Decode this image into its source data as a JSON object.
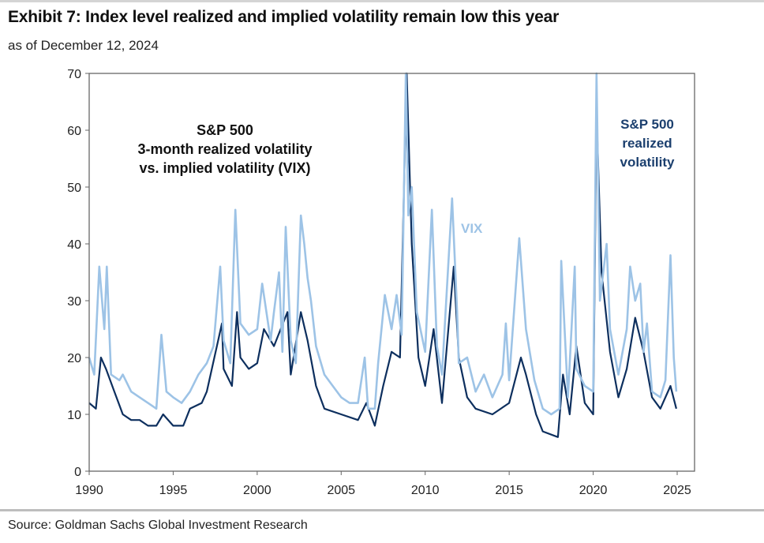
{
  "header": {
    "title": "Exhibit 7: Index level realized and implied volatility remain low this year",
    "subtitle": "as of December 12, 2024"
  },
  "footer": {
    "source": "Source: Goldman Sachs Global Investment Research"
  },
  "chart_data": {
    "type": "line",
    "title": "S&P 500 3-month realized volatility vs. implied volatility (VIX)",
    "annotations": {
      "main": [
        "S&P 500",
        "3-month realized volatility",
        "vs. implied volatility (VIX)"
      ],
      "vix": "VIX",
      "realized": [
        "S&P 500",
        "realized",
        "volatility"
      ]
    },
    "xlabel": "",
    "ylabel": "",
    "xlim": [
      1990,
      2025
    ],
    "ylim": [
      0,
      70
    ],
    "xticks": [
      1990,
      1995,
      2000,
      2005,
      2010,
      2015,
      2020,
      2025
    ],
    "yticks": [
      0,
      10,
      20,
      30,
      40,
      50,
      60,
      70
    ],
    "grid": false,
    "colors": {
      "vix": "#9dc3e6",
      "realized": "#0d2f5e"
    },
    "series": [
      {
        "name": "VIX",
        "points": [
          [
            1990,
            20
          ],
          [
            1990.3,
            17
          ],
          [
            1990.6,
            36
          ],
          [
            1990.9,
            25
          ],
          [
            1991.05,
            36
          ],
          [
            1991.3,
            17
          ],
          [
            1991.8,
            16
          ],
          [
            1992,
            17
          ],
          [
            1992.5,
            14
          ],
          [
            1993,
            13
          ],
          [
            1993.5,
            12
          ],
          [
            1994,
            11
          ],
          [
            1994.3,
            24
          ],
          [
            1994.6,
            14
          ],
          [
            1995,
            13
          ],
          [
            1995.5,
            12
          ],
          [
            1996,
            14
          ],
          [
            1996.5,
            17
          ],
          [
            1997,
            19
          ],
          [
            1997.4,
            22
          ],
          [
            1997.8,
            36
          ],
          [
            1998,
            23
          ],
          [
            1998.4,
            19
          ],
          [
            1998.7,
            46
          ],
          [
            1999,
            26
          ],
          [
            1999.5,
            24
          ],
          [
            2000,
            25
          ],
          [
            2000.3,
            33
          ],
          [
            2000.8,
            23
          ],
          [
            2001,
            28
          ],
          [
            2001.3,
            35
          ],
          [
            2001.5,
            21
          ],
          [
            2001.7,
            43
          ],
          [
            2002,
            23
          ],
          [
            2002.3,
            19
          ],
          [
            2002.6,
            45
          ],
          [
            2002.8,
            40
          ],
          [
            2003,
            34
          ],
          [
            2003.2,
            30
          ],
          [
            2003.5,
            22
          ],
          [
            2004,
            17
          ],
          [
            2004.5,
            15
          ],
          [
            2005,
            13
          ],
          [
            2005.5,
            12
          ],
          [
            2006,
            12
          ],
          [
            2006.4,
            20
          ],
          [
            2006.6,
            11
          ],
          [
            2007,
            11
          ],
          [
            2007.2,
            19
          ],
          [
            2007.6,
            31
          ],
          [
            2008,
            25
          ],
          [
            2008.3,
            31
          ],
          [
            2008.6,
            24
          ],
          [
            2008.85,
            70
          ],
          [
            2009,
            45
          ],
          [
            2009.2,
            50
          ],
          [
            2009.5,
            28
          ],
          [
            2010,
            21
          ],
          [
            2010.4,
            46
          ],
          [
            2010.7,
            22
          ],
          [
            2011,
            17
          ],
          [
            2011.6,
            48
          ],
          [
            2011.9,
            28
          ],
          [
            2012,
            19
          ],
          [
            2012.5,
            20
          ],
          [
            2013,
            14
          ],
          [
            2013.5,
            17
          ],
          [
            2014,
            13
          ],
          [
            2014.6,
            17
          ],
          [
            2014.8,
            26
          ],
          [
            2015,
            16
          ],
          [
            2015.6,
            41
          ],
          [
            2016,
            25
          ],
          [
            2016.5,
            16
          ],
          [
            2017,
            11
          ],
          [
            2017.5,
            10
          ],
          [
            2018,
            11
          ],
          [
            2018.1,
            37
          ],
          [
            2018.5,
            13
          ],
          [
            2018.9,
            36
          ],
          [
            2019,
            18
          ],
          [
            2019.5,
            15
          ],
          [
            2020,
            14
          ],
          [
            2020.2,
            70
          ],
          [
            2020.4,
            30
          ],
          [
            2020.8,
            40
          ],
          [
            2021,
            25
          ],
          [
            2021.5,
            17
          ],
          [
            2022,
            25
          ],
          [
            2022.2,
            36
          ],
          [
            2022.5,
            30
          ],
          [
            2022.8,
            33
          ],
          [
            2023,
            21
          ],
          [
            2023.2,
            26
          ],
          [
            2023.5,
            14
          ],
          [
            2024,
            13
          ],
          [
            2024.3,
            16
          ],
          [
            2024.6,
            38
          ],
          [
            2024.8,
            20
          ],
          [
            2024.95,
            14
          ]
        ]
      },
      {
        "name": "S&P 500 realized volatility",
        "points": [
          [
            1990,
            12
          ],
          [
            1990.4,
            11
          ],
          [
            1990.7,
            20
          ],
          [
            1991,
            18
          ],
          [
            1991.5,
            14
          ],
          [
            1992,
            10
          ],
          [
            1992.5,
            9
          ],
          [
            1993,
            9
          ],
          [
            1993.5,
            8
          ],
          [
            1994,
            8
          ],
          [
            1994.4,
            10
          ],
          [
            1995,
            8
          ],
          [
            1995.6,
            8
          ],
          [
            1996,
            11
          ],
          [
            1996.7,
            12
          ],
          [
            1997,
            14
          ],
          [
            1997.9,
            26
          ],
          [
            1998,
            18
          ],
          [
            1998.5,
            15
          ],
          [
            1998.8,
            28
          ],
          [
            1999,
            20
          ],
          [
            1999.5,
            18
          ],
          [
            2000,
            19
          ],
          [
            2000.4,
            25
          ],
          [
            2001,
            22
          ],
          [
            2001.8,
            28
          ],
          [
            2002,
            17
          ],
          [
            2002.6,
            28
          ],
          [
            2003,
            23
          ],
          [
            2003.5,
            15
          ],
          [
            2004,
            11
          ],
          [
            2005,
            10
          ],
          [
            2006,
            9
          ],
          [
            2006.5,
            12
          ],
          [
            2007,
            8
          ],
          [
            2007.5,
            15
          ],
          [
            2008,
            21
          ],
          [
            2008.5,
            20
          ],
          [
            2008.9,
            70
          ],
          [
            2009.2,
            40
          ],
          [
            2009.6,
            20
          ],
          [
            2010,
            15
          ],
          [
            2010.5,
            25
          ],
          [
            2011,
            12
          ],
          [
            2011.7,
            36
          ],
          [
            2012,
            20
          ],
          [
            2012.5,
            13
          ],
          [
            2013,
            11
          ],
          [
            2014,
            10
          ],
          [
            2015,
            12
          ],
          [
            2015.7,
            20
          ],
          [
            2016,
            17
          ],
          [
            2016.6,
            10
          ],
          [
            2017,
            7
          ],
          [
            2017.9,
            6
          ],
          [
            2018.2,
            17
          ],
          [
            2018.6,
            10
          ],
          [
            2019,
            22
          ],
          [
            2019.5,
            12
          ],
          [
            2020,
            10
          ],
          [
            2020.2,
            63
          ],
          [
            2020.5,
            35
          ],
          [
            2021,
            21
          ],
          [
            2021.5,
            13
          ],
          [
            2022,
            18
          ],
          [
            2022.5,
            27
          ],
          [
            2023,
            21
          ],
          [
            2023.5,
            13
          ],
          [
            2024,
            11
          ],
          [
            2024.6,
            15
          ],
          [
            2024.95,
            11
          ]
        ]
      }
    ]
  }
}
